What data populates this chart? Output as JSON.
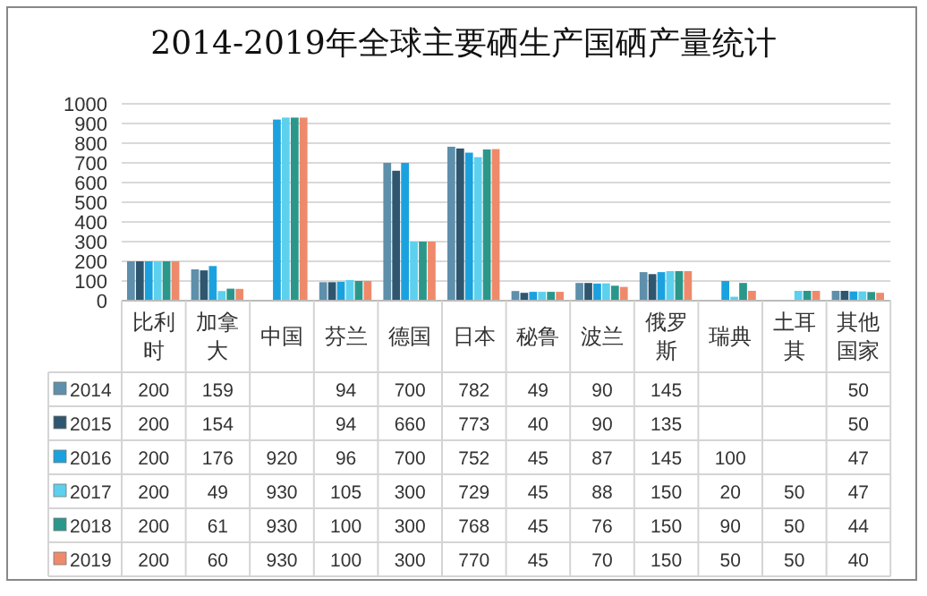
{
  "chart_data": {
    "type": "bar",
    "title": "2014-2019年全球主要硒生产国硒产量统计",
    "categories": [
      "比利时",
      "加拿大",
      "中国",
      "芬兰",
      "德国",
      "日本",
      "秘鲁",
      "波兰",
      "俄罗斯",
      "瑞典",
      "土耳其",
      "其他国家"
    ],
    "series": [
      {
        "name": "2014",
        "color": "#5e8fab",
        "values": [
          200,
          159,
          null,
          94,
          700,
          782,
          49,
          90,
          145,
          null,
          null,
          50
        ]
      },
      {
        "name": "2015",
        "color": "#2f566f",
        "values": [
          200,
          154,
          null,
          94,
          660,
          773,
          40,
          90,
          135,
          null,
          null,
          50
        ]
      },
      {
        "name": "2016",
        "color": "#1ba2de",
        "values": [
          200,
          176,
          920,
          96,
          700,
          752,
          45,
          87,
          145,
          100,
          null,
          47
        ]
      },
      {
        "name": "2017",
        "color": "#5dd0ee",
        "values": [
          200,
          49,
          930,
          105,
          300,
          729,
          45,
          88,
          150,
          20,
          50,
          47
        ]
      },
      {
        "name": "2018",
        "color": "#2b978a",
        "values": [
          200,
          61,
          930,
          100,
          300,
          768,
          45,
          76,
          150,
          90,
          50,
          44
        ]
      },
      {
        "name": "2019",
        "color": "#ee8a6b",
        "values": [
          200,
          60,
          930,
          100,
          300,
          770,
          45,
          70,
          150,
          50,
          50,
          40
        ]
      }
    ],
    "ylim": [
      0,
      1000
    ],
    "yticks": [
      0,
      100,
      200,
      300,
      400,
      500,
      600,
      700,
      800,
      900,
      1000
    ],
    "grid": "y",
    "legend": "bottom",
    "data_labels": true
  }
}
